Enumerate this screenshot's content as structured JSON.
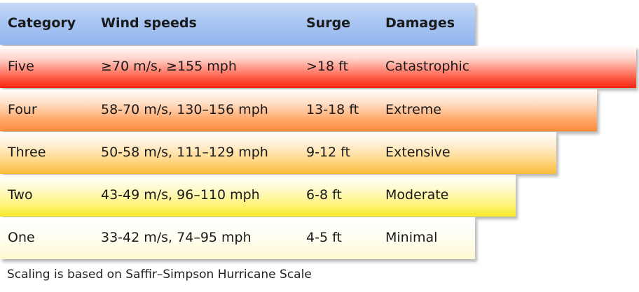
{
  "header": {
    "category": "Category",
    "wind_speeds": "Wind speeds",
    "surge": "Surge",
    "damages": "Damages"
  },
  "rows": [
    {
      "category": "Five",
      "wind_speeds": "≥70 m/s, ≥155 mph",
      "surge": ">18 ft",
      "damages": "Catastrophic",
      "color": "#f4230f"
    },
    {
      "category": "Four",
      "wind_speeds": "58-70 m/s, 130–156 mph",
      "surge": "13-18 ft",
      "damages": "Extreme",
      "color": "#fa8a3a"
    },
    {
      "category": "Three",
      "wind_speeds": "50-58 m/s, 111–129 mph",
      "surge": "9-12 ft",
      "damages": "Extensive",
      "color": "#f9bc39"
    },
    {
      "category": "Two",
      "wind_speeds": "43-49 m/s, 96–110 mph",
      "surge": "6-8 ft",
      "damages": "Moderate",
      "color": "#f4ea26"
    },
    {
      "category": "One",
      "wind_speeds": "33-42 m/s, 74–95 mph",
      "surge": "4-5 ft",
      "damages": "Minimal",
      "color": "#fff8cf"
    }
  ],
  "footnote": "Scaling is based on Saffir–Simpson Hurricane Scale",
  "colors": {
    "header": "#a9c6f3"
  }
}
